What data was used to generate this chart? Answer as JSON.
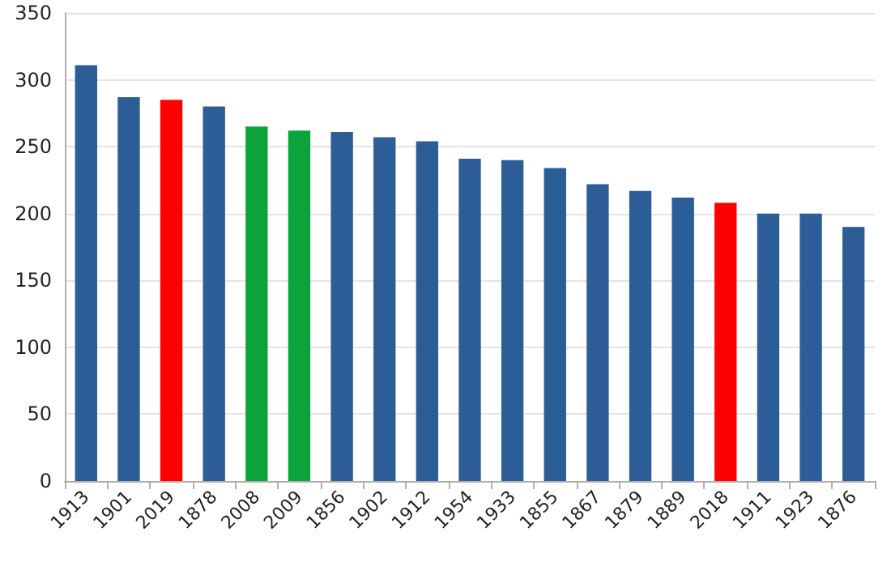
{
  "chart_data": {
    "type": "bar",
    "categories": [
      "1913",
      "1901",
      "2019",
      "1878",
      "2008",
      "2009",
      "1856",
      "1902",
      "1912",
      "1954",
      "1933",
      "1855",
      "1867",
      "1879",
      "1889",
      "2018",
      "1911",
      "1923",
      "1876"
    ],
    "values": [
      311,
      287,
      285,
      280,
      265,
      262,
      261,
      257,
      254,
      241,
      240,
      234,
      222,
      217,
      212,
      208,
      200,
      200,
      190
    ],
    "colors": [
      "#2d5d97",
      "#2d5d97",
      "#ff0000",
      "#2d5d97",
      "#0ca33a",
      "#0ca33a",
      "#2d5d97",
      "#2d5d97",
      "#2d5d97",
      "#2d5d97",
      "#2d5d97",
      "#2d5d97",
      "#2d5d97",
      "#2d5d97",
      "#2d5d97",
      "#ff0000",
      "#2d5d97",
      "#2d5d97",
      "#2d5d97"
    ],
    "ylim": [
      0,
      350
    ],
    "yticks": [
      0,
      50,
      100,
      150,
      200,
      250,
      300,
      350
    ],
    "grid": "y"
  }
}
